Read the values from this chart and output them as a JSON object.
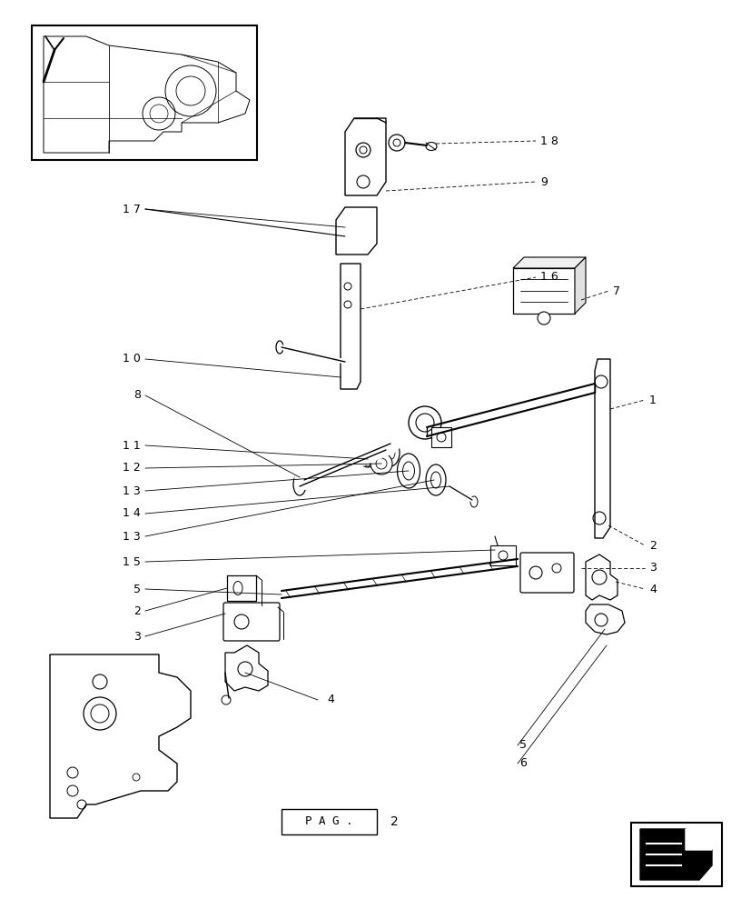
{
  "bg_color": "#ffffff",
  "line_color": "#000000",
  "figsize": [
    8.28,
    10.0
  ],
  "dpi": 100
}
